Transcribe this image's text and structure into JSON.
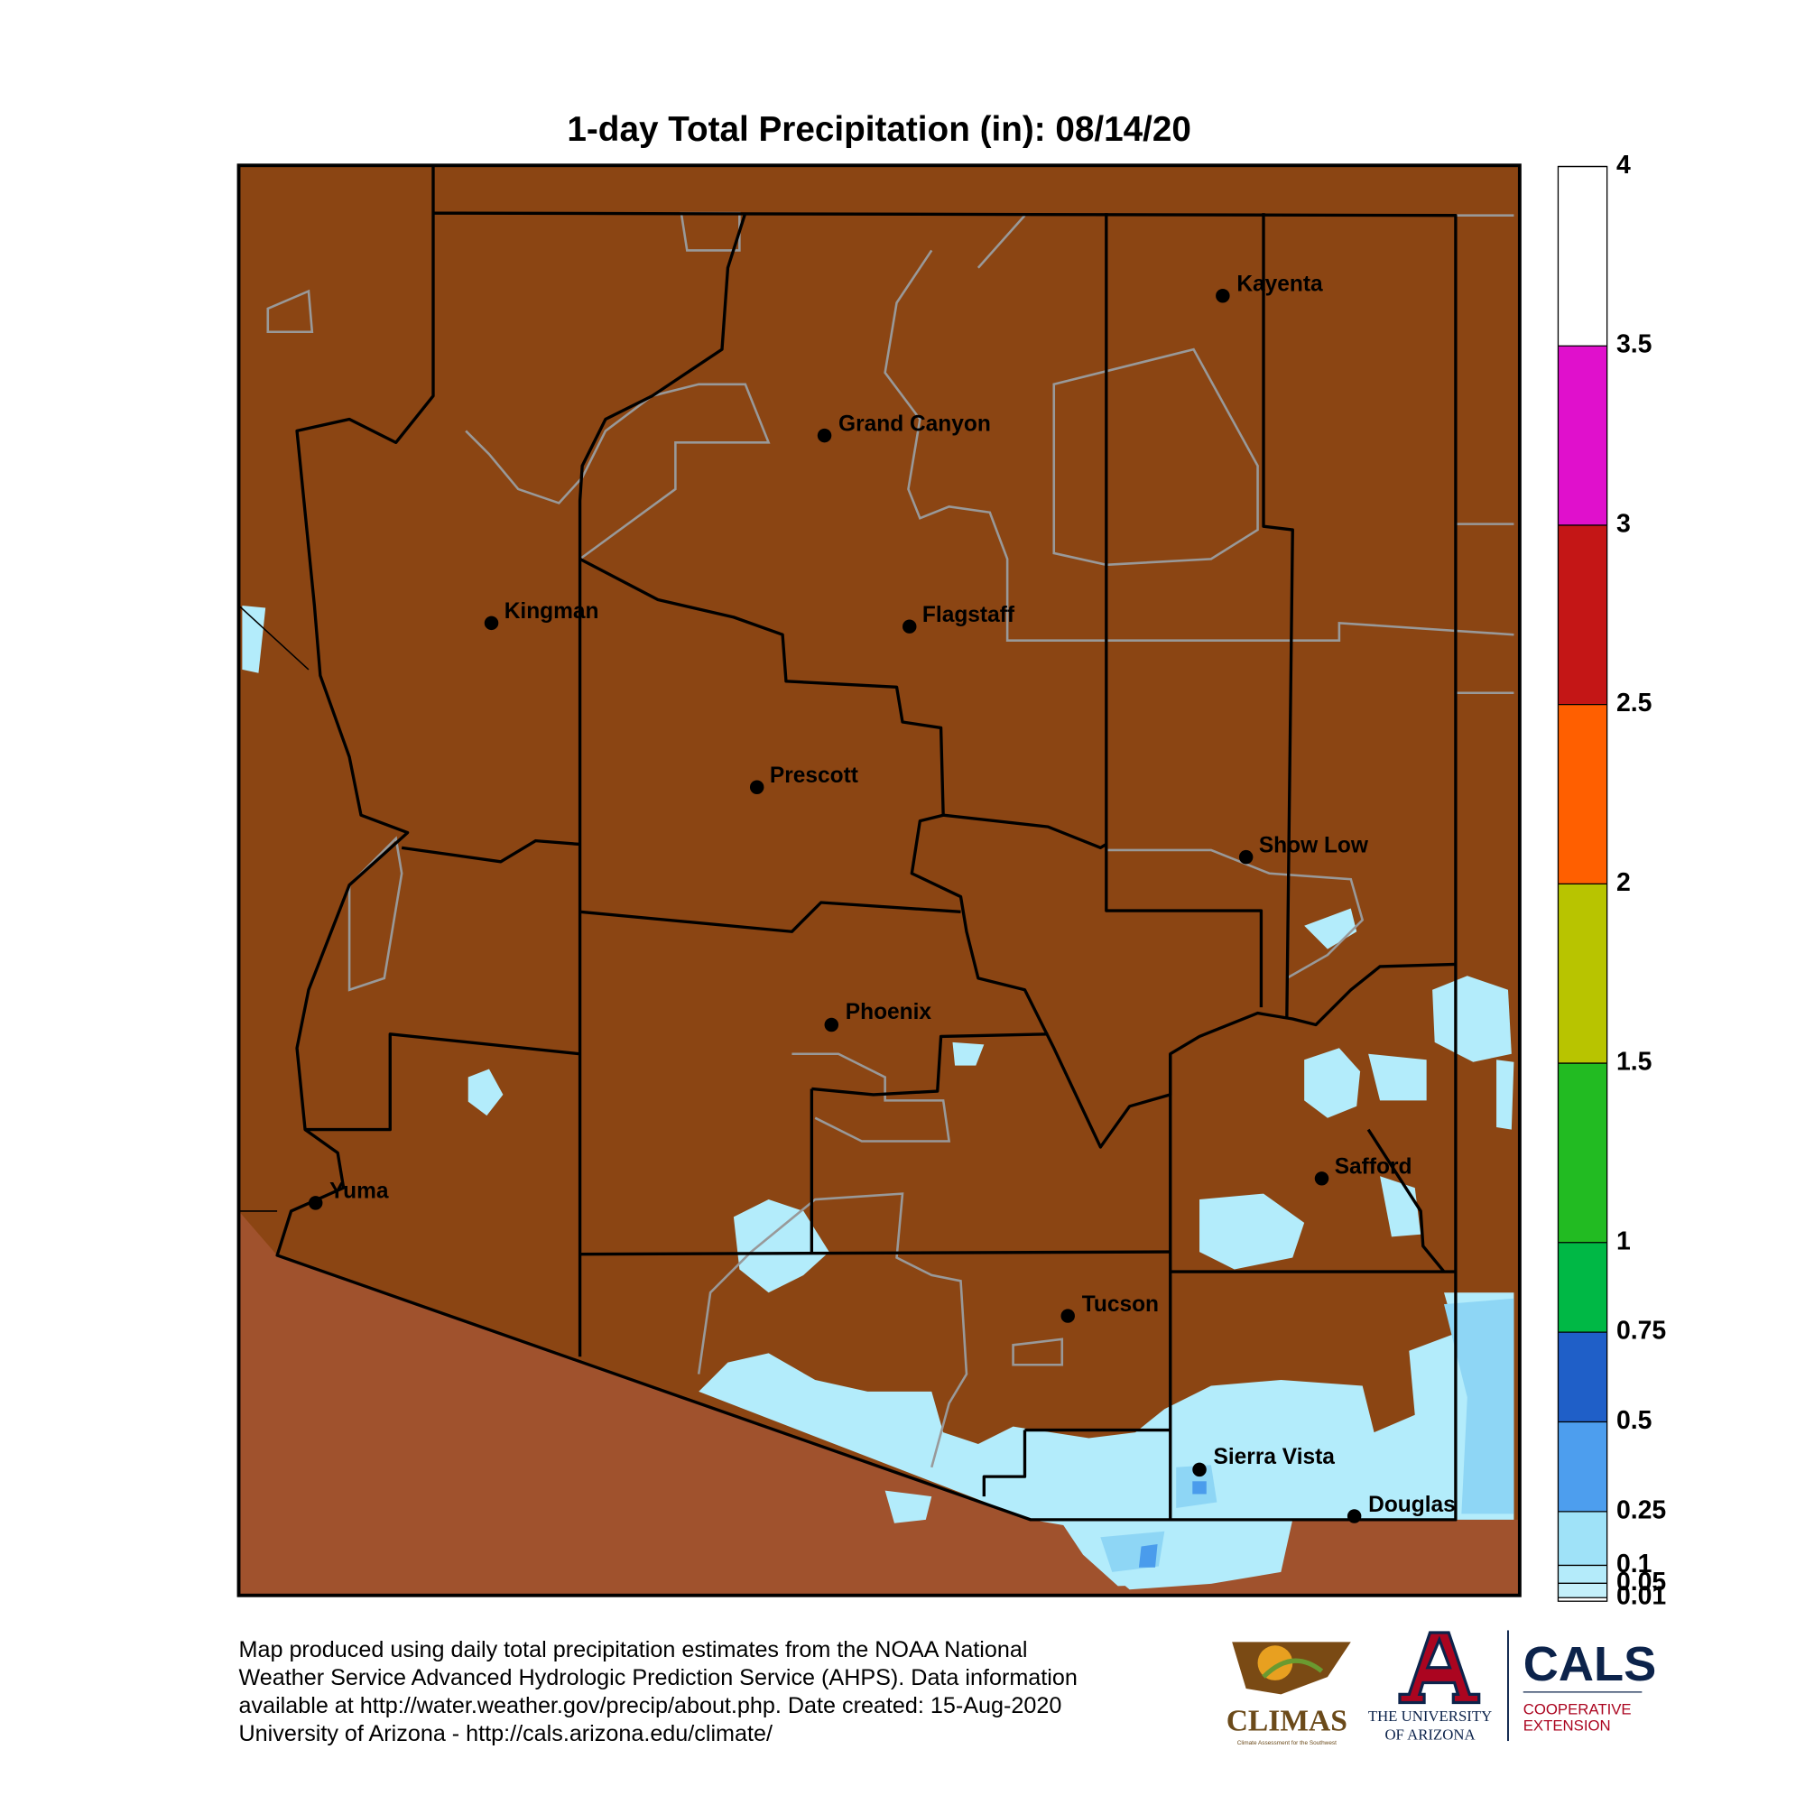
{
  "title": "1-day Total Precipitation (in): 08/14/20",
  "cities": [
    "Kayenta",
    "Grand Canyon",
    "Kingman",
    "Flagstaff",
    "Prescott",
    "Show Low",
    "Phoenix",
    "Safford",
    "Yuma",
    "Tucson",
    "Sierra Vista",
    "Douglas"
  ],
  "colorbar": {
    "lim": [
      0,
      4
    ],
    "ticks": [
      0.01,
      0.05,
      0.1,
      0.25,
      0.5,
      0.75,
      1,
      1.5,
      2,
      2.5,
      3,
      3.5,
      4
    ],
    "colors": [
      "#c4f0fb",
      "#b4ebfa",
      "#9fe2f8",
      "#4d9eee",
      "#1f5fc8",
      "#00b845",
      "#22bb22",
      "#b8c400",
      "#ff5f00",
      "#c41616",
      "#e010cc",
      "#ffffff"
    ]
  },
  "footer": {
    "lines": [
      "Map produced using daily total precipitation estimates from the NOAA National",
      "Weather Service Advanced Hydrologic Prediction Service (AHPS). Data information",
      "available at http://water.weather.gov/precip/about.php. Date created: 15-Aug-2020",
      "University of Arizona - http://cals.arizona.edu/climate/"
    ]
  },
  "logos": {
    "climas": "CLIMAS",
    "climas_tagline": "Climate Assessment for the Southwest",
    "ua_line1": "THE UNIVERSITY",
    "ua_line2": "OF ARIZONA",
    "cals": "CALS",
    "cals_line1": "COOPERATIVE",
    "cals_line2": "EXTENSION"
  }
}
